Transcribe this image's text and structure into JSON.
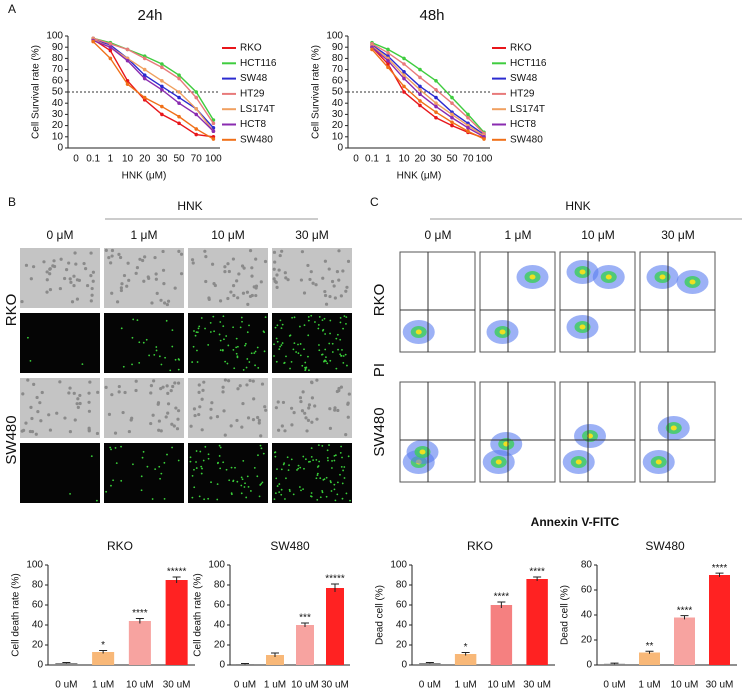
{
  "panels": {
    "a": "A",
    "b": "B",
    "c": "C"
  },
  "panel_b": {
    "title": "HNK",
    "columns": [
      "0 μM",
      "1 μM",
      "10 μM",
      "30 μM"
    ],
    "rows": [
      "RKO",
      "SW480"
    ]
  },
  "panel_c": {
    "title": "HNK",
    "columns": [
      "0 μM",
      "1 μM",
      "10 μM",
      "30 μM"
    ],
    "rows": [
      "RKO",
      "SW480"
    ],
    "y_label": "PI",
    "x_label": "Annexin V-FITC"
  },
  "chart_data": [
    {
      "type": "line",
      "title": "24h",
      "x_label": "HNK (μM)",
      "y_label": "Cell Survival rate (%)",
      "categories": [
        "0",
        "0.1",
        "1",
        "10",
        "20",
        "30",
        "50",
        "70",
        "100"
      ],
      "ylim": [
        0,
        100
      ],
      "yticks": [
        0,
        10,
        20,
        30,
        40,
        50,
        60,
        70,
        80,
        90,
        100
      ],
      "hline": 50,
      "series": [
        {
          "name": "RKO",
          "color": "#e8161b",
          "values": [
            null,
            97,
            87,
            60,
            43,
            30,
            22,
            12,
            10
          ]
        },
        {
          "name": "HCT116",
          "color": "#3fcc3f",
          "values": [
            null,
            98,
            94,
            88,
            82,
            75,
            65,
            50,
            25
          ]
        },
        {
          "name": "SW48",
          "color": "#2b2bd0",
          "values": [
            null,
            97,
            92,
            80,
            65,
            55,
            45,
            35,
            18
          ]
        },
        {
          "name": "HT29",
          "color": "#e87a7a",
          "values": [
            null,
            98,
            93,
            88,
            80,
            72,
            62,
            45,
            22
          ]
        },
        {
          "name": "LS174T",
          "color": "#f0a060",
          "values": [
            null,
            97,
            90,
            80,
            70,
            60,
            50,
            35,
            15
          ]
        },
        {
          "name": "HCT8",
          "color": "#8a2bb0",
          "values": [
            null,
            96,
            90,
            78,
            62,
            52,
            40,
            30,
            15
          ]
        },
        {
          "name": "SW480",
          "color": "#f07018",
          "values": [
            null,
            95,
            80,
            57,
            45,
            37,
            28,
            17,
            8
          ]
        }
      ]
    },
    {
      "type": "line",
      "title": "48h",
      "x_label": "HNK (μM)",
      "y_label": "Cell Survival rate (%)",
      "categories": [
        "0",
        "0.1",
        "1",
        "10",
        "20",
        "30",
        "50",
        "70",
        "100"
      ],
      "ylim": [
        0,
        100
      ],
      "yticks": [
        0,
        10,
        20,
        30,
        40,
        50,
        60,
        70,
        80,
        90,
        100
      ],
      "hline": 50,
      "series": [
        {
          "name": "RKO",
          "color": "#e8161b",
          "values": [
            null,
            90,
            75,
            50,
            38,
            27,
            20,
            14,
            9
          ]
        },
        {
          "name": "HCT116",
          "color": "#3fcc3f",
          "values": [
            null,
            94,
            88,
            80,
            70,
            60,
            45,
            30,
            14
          ]
        },
        {
          "name": "SW48",
          "color": "#2b2bd0",
          "values": [
            null,
            92,
            82,
            68,
            55,
            45,
            32,
            22,
            12
          ]
        },
        {
          "name": "HT29",
          "color": "#e87a7a",
          "values": [
            null,
            93,
            85,
            75,
            63,
            52,
            40,
            27,
            13
          ]
        },
        {
          "name": "LS174T",
          "color": "#f0a060",
          "values": [
            null,
            91,
            80,
            65,
            52,
            40,
            30,
            20,
            11
          ]
        },
        {
          "name": "HCT8",
          "color": "#8a2bb0",
          "values": [
            null,
            90,
            78,
            62,
            48,
            37,
            27,
            18,
            10
          ]
        },
        {
          "name": "SW480",
          "color": "#f07018",
          "values": [
            null,
            88,
            72,
            55,
            42,
            32,
            23,
            15,
            8
          ]
        }
      ]
    },
    {
      "type": "bar",
      "title": "RKO",
      "y_label": "Cell death rate (%)",
      "categories": [
        "0 uM",
        "1 uM",
        "10 uM",
        "30 uM"
      ],
      "values": [
        2,
        13,
        44,
        85
      ],
      "errors": [
        0.5,
        1.5,
        2.5,
        3
      ],
      "annotations": [
        null,
        "*",
        "****",
        "*****"
      ],
      "colors": [
        "#888888",
        "#f8b878",
        "#f7a3a0",
        "#ff2222"
      ],
      "ylim": [
        0,
        100
      ],
      "yticks": [
        0,
        20,
        40,
        60,
        80,
        100
      ]
    },
    {
      "type": "bar",
      "title": "SW480",
      "y_label": "Cell death rate (%)",
      "categories": [
        "0 uM",
        "1 uM",
        "10 uM",
        "30 uM"
      ],
      "values": [
        1,
        10,
        40,
        77
      ],
      "errors": [
        0.5,
        2,
        2,
        4
      ],
      "annotations": [
        null,
        null,
        "***",
        "*****"
      ],
      "colors": [
        "#888888",
        "#f8b878",
        "#f7a3a0",
        "#ff2222"
      ],
      "ylim": [
        0,
        100
      ],
      "yticks": [
        0,
        20,
        40,
        60,
        80,
        100
      ]
    },
    {
      "type": "bar",
      "title": "RKO",
      "y_label": "Dead cell (%)",
      "categories": [
        "0 uM",
        "1 uM",
        "10 uM",
        "30 uM"
      ],
      "values": [
        2,
        11,
        60,
        86
      ],
      "errors": [
        0.5,
        1.5,
        3,
        2
      ],
      "annotations": [
        null,
        "*",
        "****",
        "****"
      ],
      "colors": [
        "#888888",
        "#f8b878",
        "#f58080",
        "#ff2222"
      ],
      "ylim": [
        0,
        100
      ],
      "yticks": [
        0,
        20,
        40,
        60,
        80,
        100
      ]
    },
    {
      "type": "bar",
      "title": "SW480",
      "y_label": "Dead cell (%)",
      "categories": [
        "0 uM",
        "1 uM",
        "10 uM",
        "30 uM"
      ],
      "values": [
        1,
        10,
        38,
        72
      ],
      "errors": [
        0.5,
        1,
        1.5,
        1.5
      ],
      "annotations": [
        null,
        "**",
        "****",
        "****"
      ],
      "colors": [
        "#888888",
        "#f8b878",
        "#f7a3a0",
        "#ff2222"
      ],
      "ylim": [
        0,
        80
      ],
      "yticks": [
        0,
        20,
        40,
        60,
        80
      ]
    }
  ]
}
